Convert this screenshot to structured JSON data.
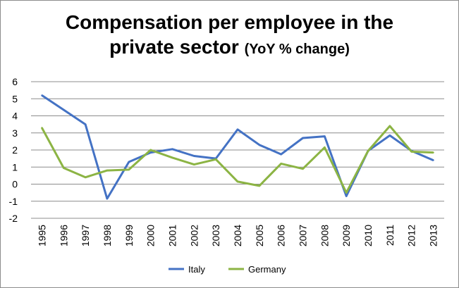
{
  "chart_data": {
    "type": "line",
    "title": "Compensation per employee in the",
    "title_line2": "private sector",
    "title_suffix": "(YoY % change)",
    "xlabel": "",
    "ylabel": "",
    "ylim": [
      -2,
      6
    ],
    "yticks": [
      "6",
      "5",
      "4",
      "3",
      "2",
      "1",
      "0",
      "-1",
      "-2"
    ],
    "grid": true,
    "legend_position": "bottom",
    "categories": [
      "1995",
      "1996",
      "1997",
      "1998",
      "1999",
      "2000",
      "2001",
      "2002",
      "2003",
      "2004",
      "2005",
      "2006",
      "2007",
      "2008",
      "2009",
      "2010",
      "2011",
      "2012",
      "2013"
    ],
    "series": [
      {
        "name": "Italy",
        "color": "#4472C4",
        "values": [
          5.2,
          4.35,
          3.5,
          -0.85,
          1.3,
          1.85,
          2.05,
          1.65,
          1.5,
          3.2,
          2.3,
          1.75,
          2.7,
          2.8,
          -0.7,
          1.95,
          2.85,
          1.95,
          1.4
        ]
      },
      {
        "name": "Germany",
        "color": "#8CB444",
        "values": [
          3.3,
          0.95,
          0.4,
          0.8,
          0.85,
          2.0,
          1.55,
          1.15,
          1.45,
          0.15,
          -0.1,
          1.2,
          0.9,
          2.15,
          -0.5,
          1.95,
          3.4,
          1.9,
          1.85
        ]
      }
    ]
  }
}
